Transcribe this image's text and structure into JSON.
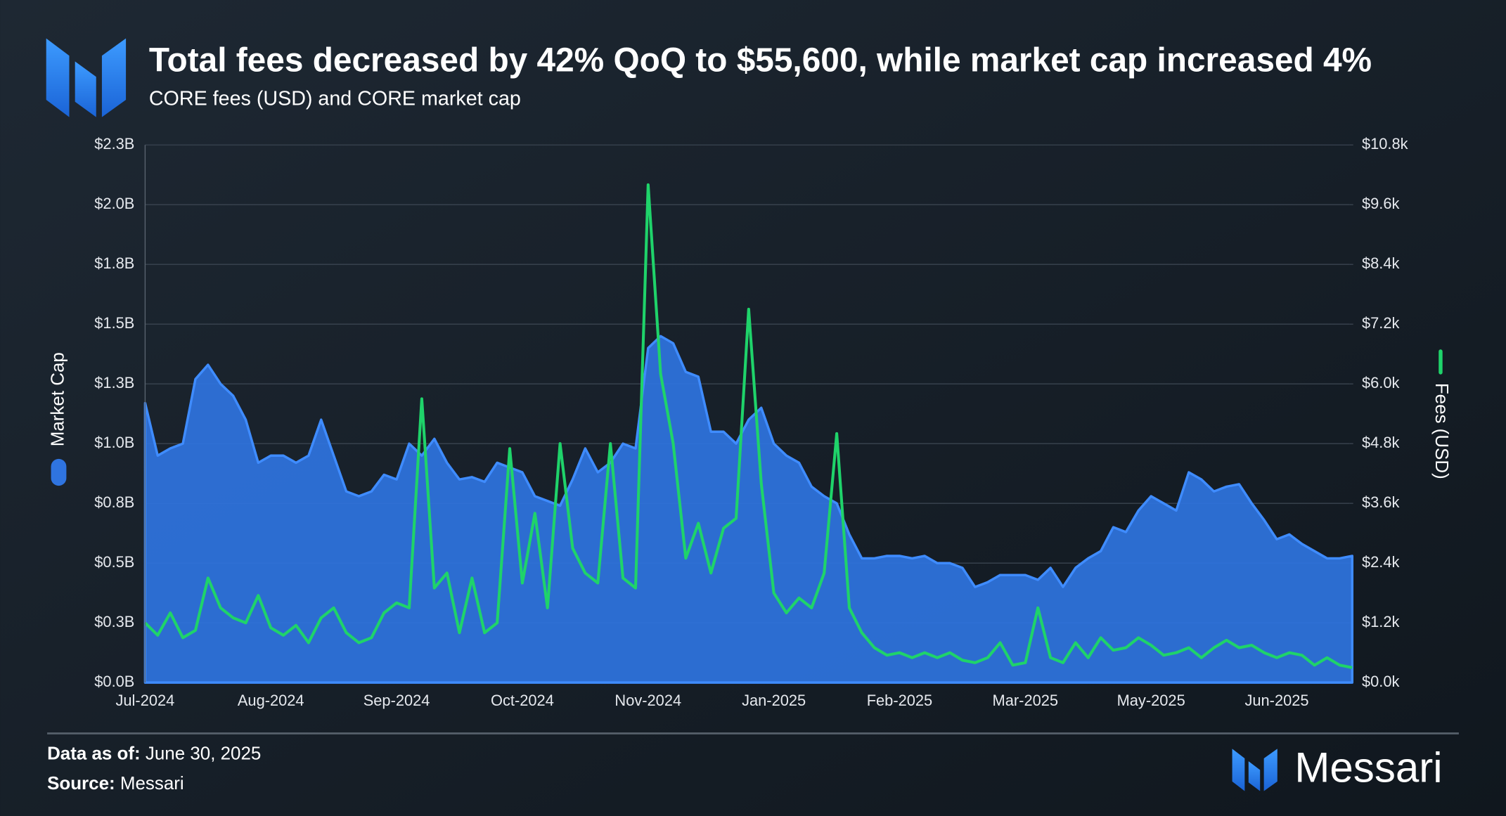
{
  "chart_data": {
    "type": "area-line",
    "title": "Total fees decreased by 42% QoQ to $55,600, while market cap increased 4%",
    "subtitle": "CORE fees (USD) and CORE market cap",
    "categories": [
      "Jul-2024",
      null,
      null,
      null,
      null,
      null,
      null,
      null,
      null,
      null,
      "Aug-2024",
      null,
      null,
      null,
      null,
      null,
      null,
      null,
      null,
      null,
      "Sep-2024",
      null,
      null,
      null,
      null,
      null,
      null,
      null,
      null,
      null,
      "Oct-2024",
      null,
      null,
      null,
      null,
      null,
      null,
      null,
      null,
      null,
      "Nov-2024",
      null,
      null,
      null,
      null,
      null,
      null,
      null,
      null,
      null,
      "Jan-2025",
      null,
      null,
      null,
      null,
      null,
      null,
      null,
      null,
      null,
      "Feb-2025",
      null,
      null,
      null,
      null,
      null,
      null,
      null,
      null,
      null,
      "Mar-2025",
      null,
      null,
      null,
      null,
      null,
      null,
      null,
      null,
      null,
      "May-2025",
      null,
      null,
      null,
      null,
      null,
      null,
      null,
      null,
      null,
      "Jun-2025",
      null,
      null,
      null,
      null,
      null,
      null
    ],
    "series": [
      {
        "name": "Market Cap",
        "color": "#2f74e0",
        "axis": "y",
        "values": [
          1.17,
          0.95,
          0.98,
          1.0,
          1.27,
          1.33,
          1.25,
          1.2,
          1.1,
          0.92,
          0.95,
          0.95,
          0.92,
          0.95,
          1.1,
          0.95,
          0.8,
          0.78,
          0.8,
          0.87,
          0.85,
          1.0,
          0.95,
          1.02,
          0.92,
          0.85,
          0.86,
          0.84,
          0.92,
          0.9,
          0.88,
          0.78,
          0.76,
          0.74,
          0.85,
          0.98,
          0.88,
          0.92,
          1.0,
          0.98,
          1.4,
          1.45,
          1.42,
          1.3,
          1.28,
          1.05,
          1.05,
          1.0,
          1.1,
          1.15,
          1.0,
          0.95,
          0.92,
          0.82,
          0.78,
          0.75,
          0.62,
          0.52,
          0.52,
          0.53,
          0.53,
          0.52,
          0.53,
          0.5,
          0.5,
          0.48,
          0.4,
          0.42,
          0.45,
          0.45,
          0.45,
          0.43,
          0.48,
          0.4,
          0.48,
          0.52,
          0.55,
          0.65,
          0.63,
          0.72,
          0.78,
          0.75,
          0.72,
          0.88,
          0.85,
          0.8,
          0.82,
          0.83,
          0.75,
          0.68,
          0.6,
          0.62,
          0.58,
          0.55,
          0.52,
          0.52,
          0.53
        ]
      },
      {
        "name": "Fees (USD)",
        "color": "#1fd36a",
        "axis": "y2",
        "values": [
          1200,
          950,
          1400,
          900,
          1050,
          2100,
          1500,
          1300,
          1200,
          1750,
          1100,
          950,
          1150,
          800,
          1300,
          1500,
          1000,
          800,
          900,
          1400,
          1600,
          1500,
          5700,
          1900,
          2200,
          1000,
          2100,
          1000,
          1200,
          4700,
          2000,
          3400,
          1500,
          4800,
          2700,
          2200,
          2000,
          4800,
          2100,
          1900,
          10000,
          6200,
          4800,
          2500,
          3200,
          2200,
          3100,
          3300,
          7500,
          4000,
          1800,
          1400,
          1700,
          1500,
          2200,
          5000,
          1500,
          1000,
          700,
          550,
          600,
          500,
          600,
          500,
          600,
          450,
          400,
          500,
          800,
          350,
          400,
          1500,
          500,
          400,
          800,
          500,
          900,
          650,
          700,
          900,
          750,
          550,
          600,
          700,
          500,
          700,
          850,
          700,
          750,
          600,
          500,
          600,
          550,
          350,
          500,
          350,
          300
        ]
      }
    ],
    "ylim": [
      0,
      2.25
    ],
    "yticks": [
      {
        "value": 0,
        "label": "$0.0B"
      },
      {
        "value": 0.25,
        "label": "$0.3B"
      },
      {
        "value": 0.5,
        "label": "$0.5B"
      },
      {
        "value": 0.75,
        "label": "$0.8B"
      },
      {
        "value": 1.0,
        "label": "$1.0B"
      },
      {
        "value": 1.25,
        "label": "$1.3B"
      },
      {
        "value": 1.5,
        "label": "$1.5B"
      },
      {
        "value": 1.75,
        "label": "$1.8B"
      },
      {
        "value": 2.0,
        "label": "$2.0B"
      },
      {
        "value": 2.25,
        "label": "$2.3B"
      }
    ],
    "y2lim": [
      0,
      10800
    ],
    "y2ticks": [
      {
        "value": 0,
        "label": "$0.0k"
      },
      {
        "value": 1200,
        "label": "$1.2k"
      },
      {
        "value": 2400,
        "label": "$2.4k"
      },
      {
        "value": 3600,
        "label": "$3.6k"
      },
      {
        "value": 4800,
        "label": "$4.8k"
      },
      {
        "value": 6000,
        "label": "$6.0k"
      },
      {
        "value": 7200,
        "label": "$7.2k"
      },
      {
        "value": 8400,
        "label": "$8.4k"
      },
      {
        "value": 9600,
        "label": "$9.6k"
      },
      {
        "value": 10800,
        "label": "$10.8k"
      }
    ],
    "grid": true
  },
  "footer": {
    "date_label": "Data as of:",
    "date": "June 30, 2025",
    "source_label": "Source:",
    "source": "Messari",
    "brand": "Messari"
  }
}
